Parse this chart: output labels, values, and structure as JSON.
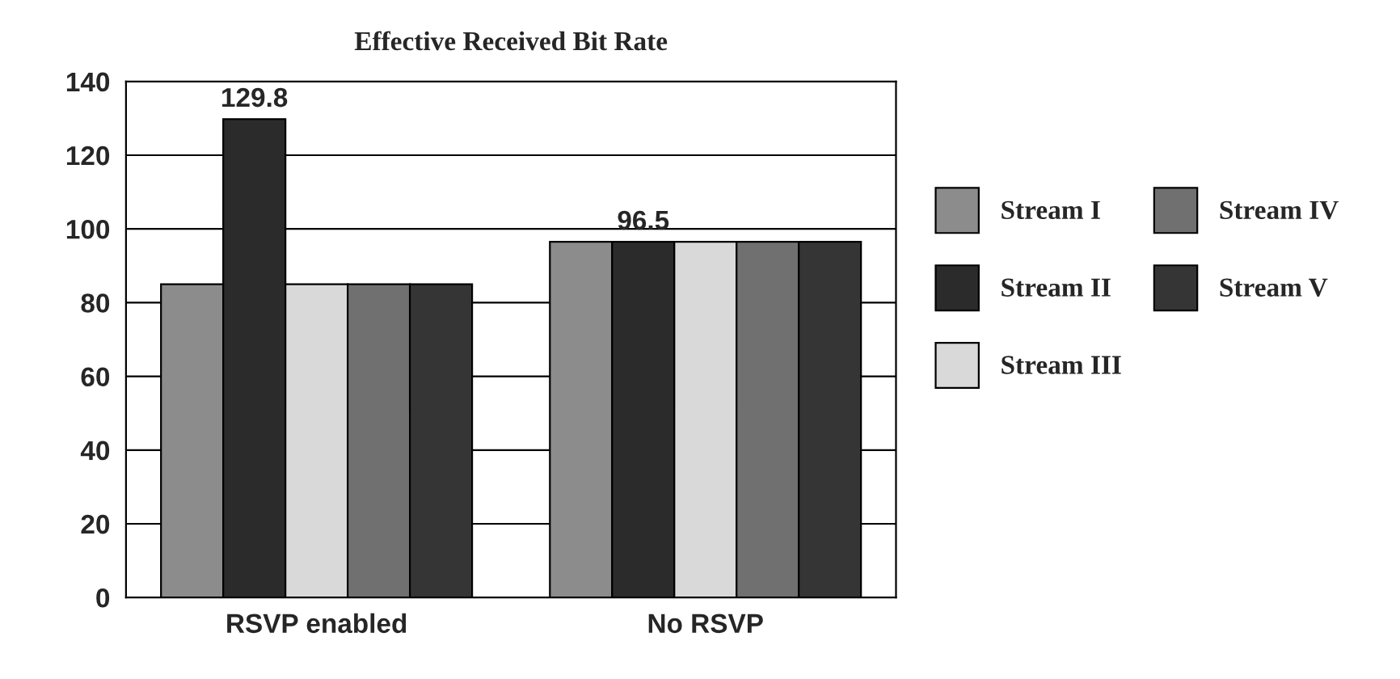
{
  "chart_data": {
    "type": "bar",
    "title": "Effective Received Bit Rate",
    "categories": [
      "RSVP enabled",
      "No RSVP"
    ],
    "series": [
      {
        "name": "Stream I",
        "color": "#8c8c8c",
        "values": [
          85,
          96.5
        ]
      },
      {
        "name": "Stream II",
        "color": "#2b2b2b",
        "values": [
          129.8,
          96.5
        ],
        "value_labels": [
          "129.8",
          "96.5"
        ]
      },
      {
        "name": "Stream III",
        "color": "#d9d9d9",
        "values": [
          85,
          96.5
        ]
      },
      {
        "name": "Stream IV",
        "color": "#707070",
        "values": [
          85,
          96.5
        ]
      },
      {
        "name": "Stream V",
        "color": "#353535",
        "values": [
          85,
          96.5
        ]
      }
    ],
    "ylim": [
      0,
      140
    ],
    "yticks": [
      0,
      20,
      40,
      60,
      80,
      100,
      120,
      140
    ],
    "grid": "y",
    "legend": "right"
  }
}
